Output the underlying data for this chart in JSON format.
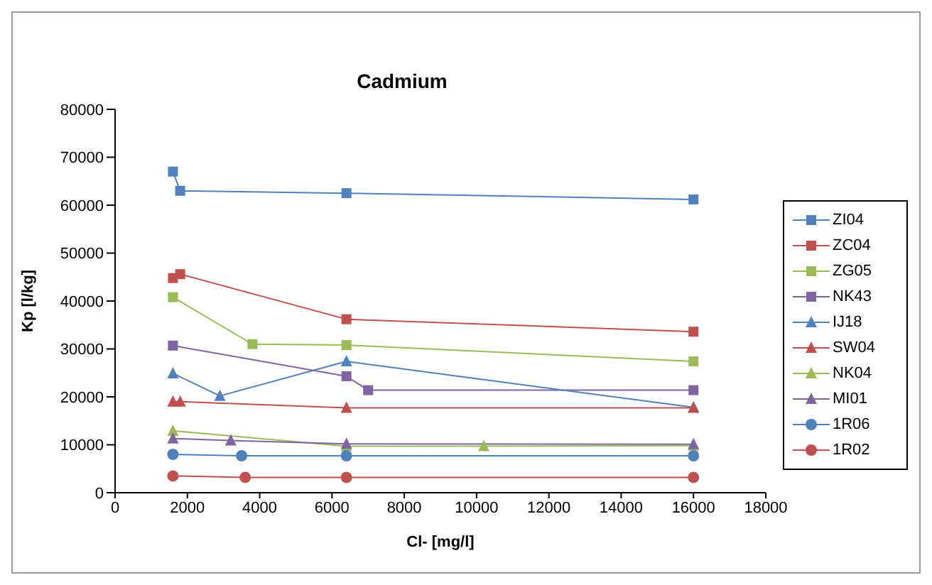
{
  "chart_data": {
    "type": "line",
    "title": "Cadmium",
    "xlabel": "Cl- [mg/l]",
    "ylabel": "Kp [l/kg]",
    "xlim": [
      0,
      18000
    ],
    "xticks": [
      0,
      2000,
      4000,
      6000,
      8000,
      10000,
      12000,
      14000,
      16000,
      18000
    ],
    "ylim": [
      0,
      80000
    ],
    "yticks": [
      0,
      10000,
      20000,
      30000,
      40000,
      50000,
      60000,
      70000,
      80000
    ],
    "legend": "right",
    "series": [
      {
        "name": "ZI04",
        "color": "#4f81bd",
        "marker": "square",
        "x": [
          1600,
          1800,
          6400,
          16000
        ],
        "values": [
          67000,
          63000,
          62500,
          61200
        ]
      },
      {
        "name": "ZC04",
        "color": "#c0504d",
        "marker": "square",
        "x": [
          1600,
          1800,
          6400,
          16000
        ],
        "values": [
          44800,
          45600,
          36200,
          33600
        ]
      },
      {
        "name": "ZG05",
        "color": "#9bbb59",
        "marker": "square",
        "x": [
          1600,
          3800,
          6400,
          16000
        ],
        "values": [
          40800,
          31000,
          30800,
          27400
        ]
      },
      {
        "name": "NK43",
        "color": "#8064a2",
        "marker": "square",
        "x": [
          1600,
          6400,
          7000,
          16000
        ],
        "values": [
          30700,
          24300,
          21400,
          21400
        ]
      },
      {
        "name": "IJ18",
        "color": "#4f81bd",
        "marker": "triangle",
        "x": [
          1600,
          2900,
          6400,
          16000
        ],
        "values": [
          24900,
          20200,
          27400,
          17800
        ]
      },
      {
        "name": "SW04",
        "color": "#c0504d",
        "marker": "triangle",
        "x": [
          1600,
          1800,
          6400,
          16000
        ],
        "values": [
          19000,
          19000,
          17700,
          17700
        ]
      },
      {
        "name": "NK04",
        "color": "#9bbb59",
        "marker": "triangle",
        "x": [
          1600,
          6400,
          10200,
          16000
        ],
        "values": [
          12900,
          9700,
          9700,
          9800
        ]
      },
      {
        "name": "MI01",
        "color": "#8064a2",
        "marker": "triangle",
        "x": [
          1600,
          3200,
          6400,
          16000
        ],
        "values": [
          11300,
          10900,
          10200,
          10100
        ]
      },
      {
        "name": "1R06",
        "color": "#4f81bd",
        "marker": "circle",
        "x": [
          1600,
          3500,
          6400,
          16000
        ],
        "values": [
          8000,
          7700,
          7700,
          7700
        ]
      },
      {
        "name": "1R02",
        "color": "#c0504d",
        "marker": "circle",
        "x": [
          1600,
          3600,
          6400,
          16000
        ],
        "values": [
          3500,
          3200,
          3200,
          3200
        ]
      }
    ]
  }
}
